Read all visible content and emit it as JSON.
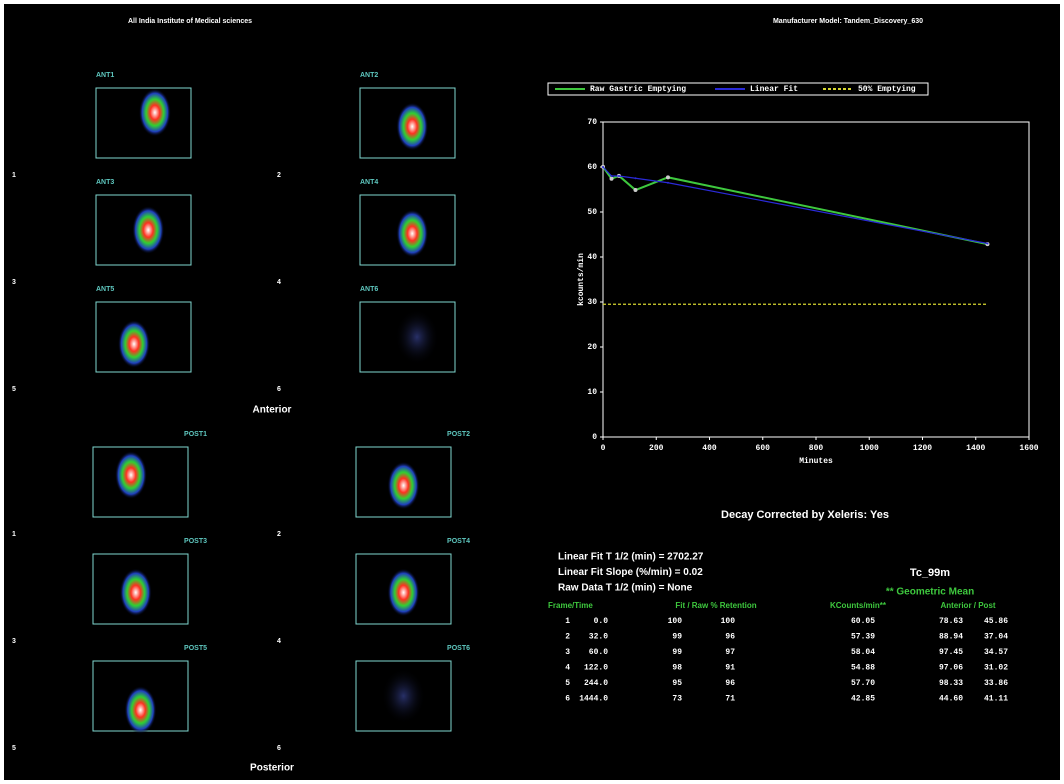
{
  "header": {
    "left": "All India Institute of Medical sciences",
    "right": "Manufacturer Model: Tandem_Discovery_630"
  },
  "anterior": {
    "title": "Anterior",
    "images": [
      "ANT1",
      "ANT2",
      "ANT3",
      "ANT4",
      "ANT5",
      "ANT6"
    ],
    "frames": [
      "1",
      "2",
      "3",
      "4",
      "5",
      "6"
    ]
  },
  "posterior": {
    "title": "Posterior",
    "images": [
      "POST1",
      "POST2",
      "POST3",
      "POST4",
      "POST5",
      "POST6"
    ],
    "frames": [
      "1",
      "2",
      "3",
      "4",
      "5",
      "6"
    ]
  },
  "chart_data": {
    "type": "line",
    "xlabel": "Minutes",
    "ylabel": "kcounts/min",
    "xlim": [
      0,
      1600
    ],
    "xticks": [
      0,
      200,
      400,
      600,
      800,
      1000,
      1200,
      1400,
      1600
    ],
    "ylim": [
      0,
      70
    ],
    "yticks": [
      0,
      10,
      20,
      30,
      40,
      50,
      60,
      70
    ],
    "series": [
      {
        "name": "Raw Gastric Emptying",
        "color": "#3ec83e",
        "x": [
          0,
          32,
          60,
          122,
          244,
          1444
        ],
        "values": [
          60.05,
          57.39,
          58.04,
          54.88,
          57.7,
          42.85
        ]
      },
      {
        "name": "Linear Fit",
        "color": "#2a2ad8",
        "x": [
          0,
          32,
          60,
          122,
          244,
          1444
        ],
        "values": [
          60,
          58,
          58,
          57.5,
          56.5,
          43
        ]
      },
      {
        "name": "50% Emptying",
        "color": "#d8d830",
        "x": [
          0,
          1444
        ],
        "values": [
          29.5,
          29.5
        ]
      }
    ]
  },
  "results": {
    "decay": "Decay Corrected by Xeleris: Yes",
    "stats": [
      "Linear Fit T 1/2 (min) = 2702.27",
      "Linear Fit Slope (%/min) = 0.02",
      "Raw Data T 1/2 (min) = None"
    ],
    "isotope": "Tc_99m",
    "note": "** Geometric Mean",
    "table": {
      "headers": [
        "Frame/Time",
        "Fit / Raw % Retention",
        "KCounts/min**",
        "Anterior / Post"
      ],
      "rows": [
        [
          "1",
          "0.0",
          "100",
          "100",
          "60.05",
          "78.63",
          "45.86"
        ],
        [
          "2",
          "32.0",
          "99",
          "96",
          "57.39",
          "88.94",
          "37.04"
        ],
        [
          "3",
          "60.0",
          "99",
          "97",
          "58.04",
          "97.45",
          "34.57"
        ],
        [
          "4",
          "122.0",
          "98",
          "91",
          "54.88",
          "97.06",
          "31.02"
        ],
        [
          "5",
          "244.0",
          "95",
          "96",
          "57.70",
          "98.33",
          "33.86"
        ],
        [
          "6",
          "1444.0",
          "73",
          "71",
          "42.85",
          "44.60",
          "41.11"
        ]
      ]
    }
  }
}
